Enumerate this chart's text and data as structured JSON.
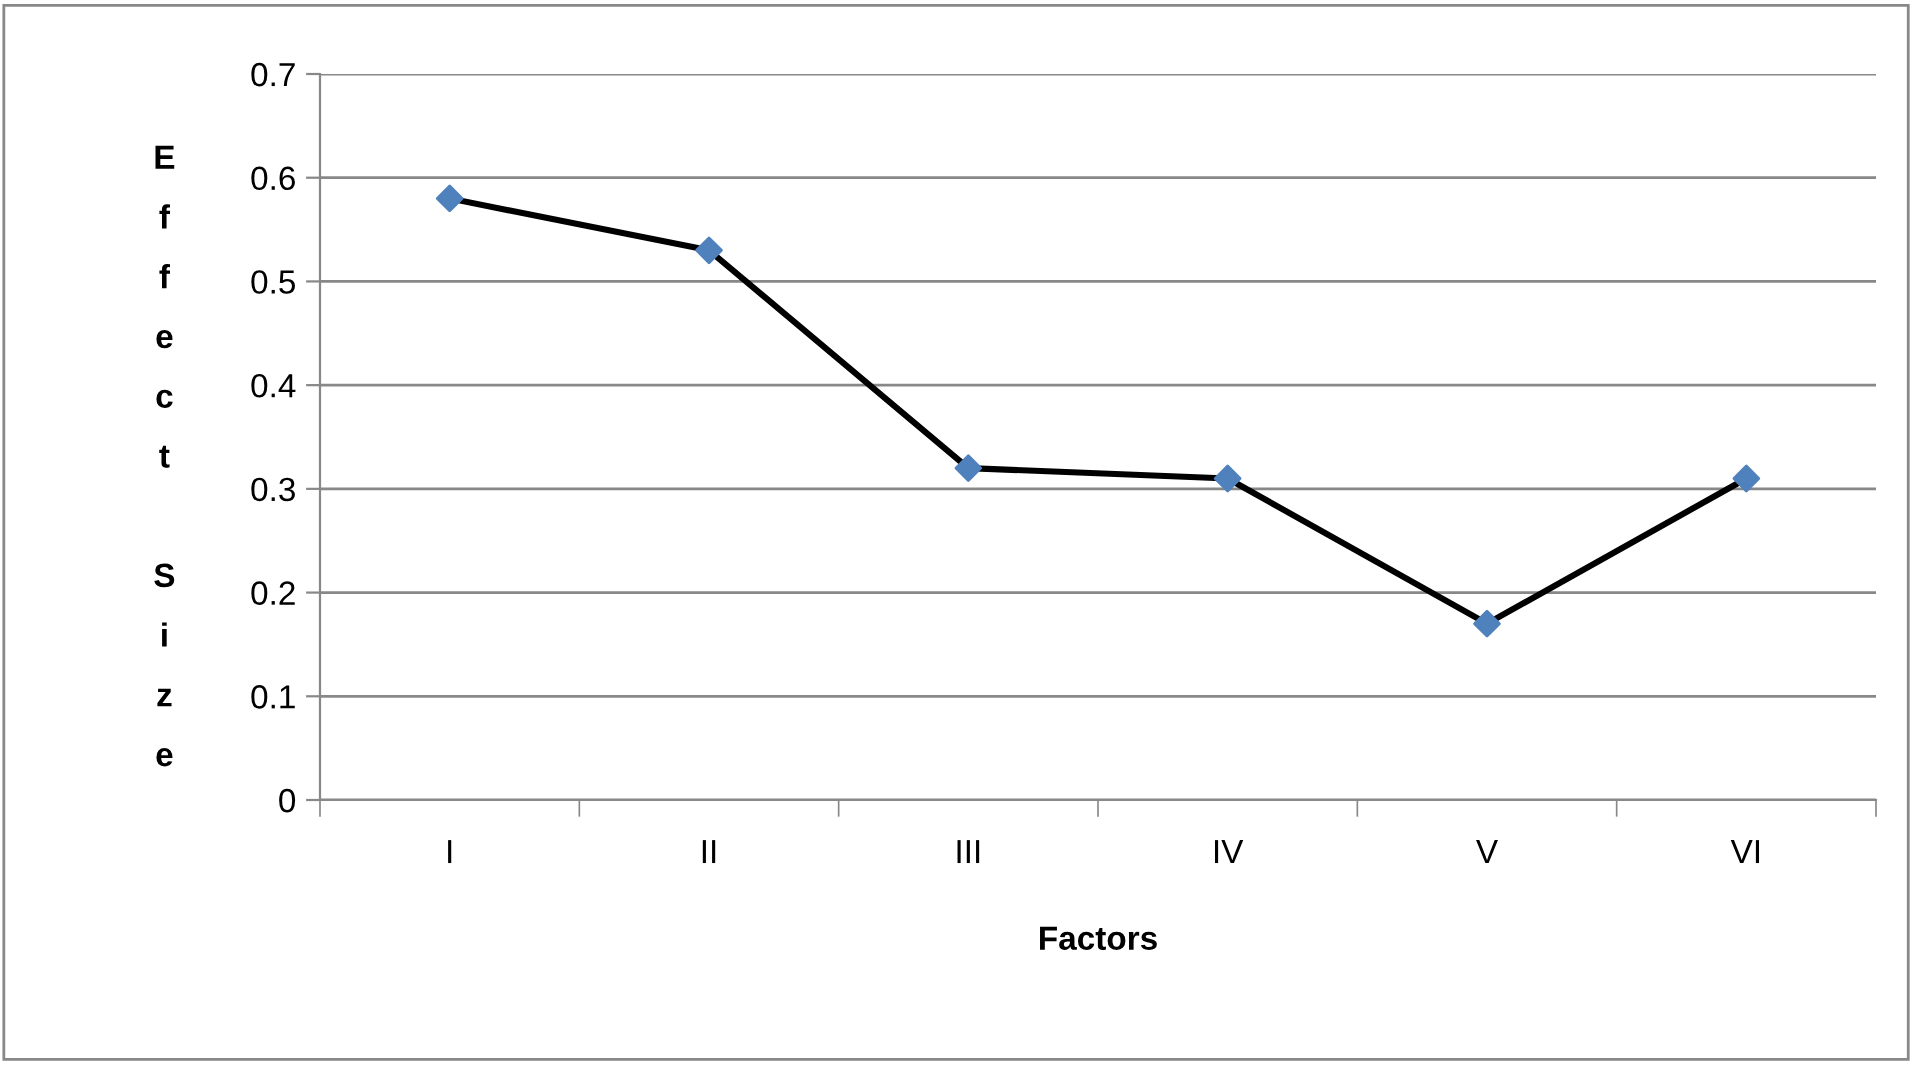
{
  "chart_data": {
    "type": "line",
    "xlabel": "Factors",
    "ylabel": "Effect Size",
    "categories": [
      "I",
      "II",
      "III",
      "IV",
      "V",
      "VI"
    ],
    "series": [
      {
        "color": "#000000",
        "colors": [
          "#4f81bd",
          "#4f81bd",
          "#4f81bd",
          "#4f81bd",
          "#4f81bd",
          "#4f81bd"
        ],
        "values": [
          0.58,
          0.53,
          0.32,
          0.31,
          0.17,
          0.31
        ]
      }
    ],
    "ylim": [
      0,
      0.7
    ],
    "yticks": [
      0,
      0.1,
      0.2,
      0.3,
      0.4,
      0.5,
      0.6,
      0.7
    ],
    "grid": "y",
    "marker": "diamond",
    "line_style": "solid",
    "legend": false
  }
}
